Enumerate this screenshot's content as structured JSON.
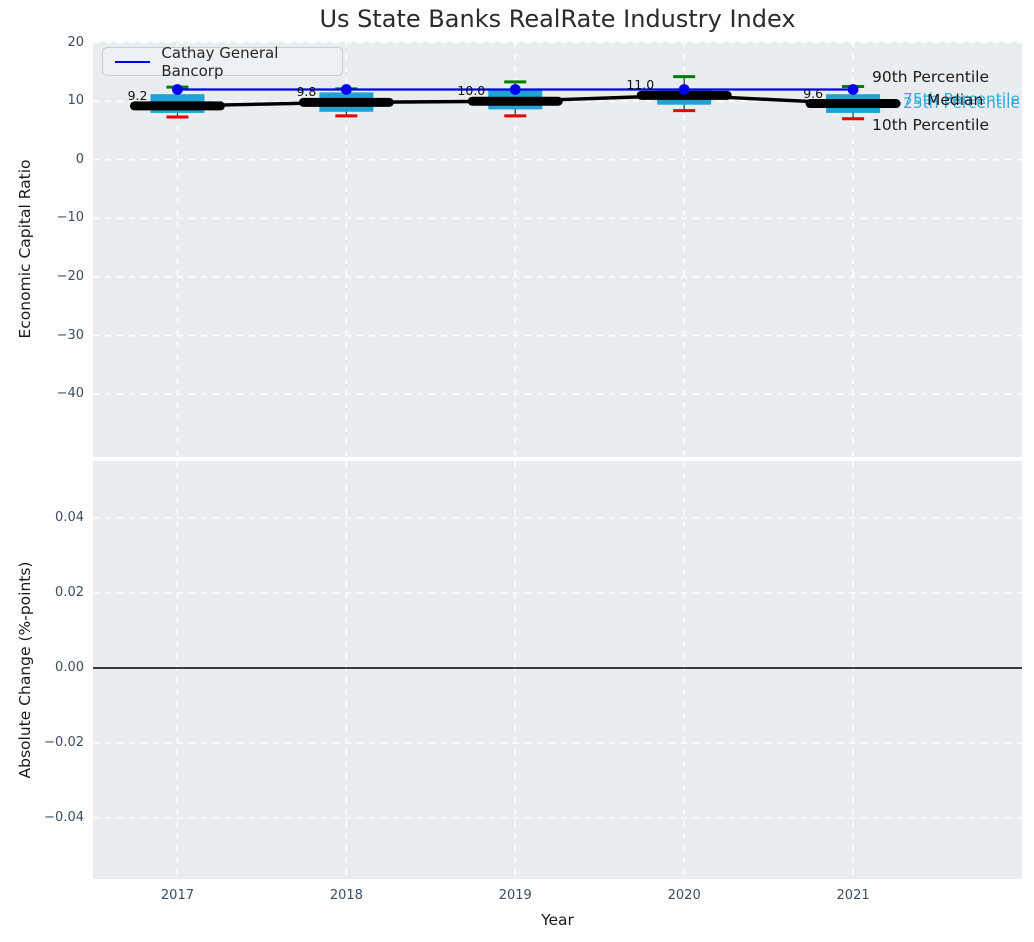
{
  "title": "Us State Banks RealRate Industry Index",
  "legend": {
    "series_label": "Cathay General Bancorp"
  },
  "axis_labels": {
    "top_y": "Economic Capital Ratio",
    "bottom_y": "Absolute Change (%-points)",
    "x": "Year"
  },
  "colors": {
    "figure_bg": "#ffffff",
    "axes_bg": "#e9edf0",
    "grid": "#ffffff",
    "box_fill": "#1fa3d7",
    "median_line": "#000000",
    "cap_90th": "#008000",
    "cap_10th": "#e60000",
    "series_line": "#0000ee",
    "tick_text": "#3e4c61",
    "label_text": "#1a1a1a",
    "annotation_cyan": "#2fadde",
    "annotation_black": "#1a1a1a",
    "zero_line": "#000000"
  },
  "chart_data": [
    {
      "type": "boxplot",
      "title": "Us State Banks RealRate Industry Index",
      "xlabel": "Year",
      "ylabel": "Economic Capital Ratio",
      "categories": [
        "2017",
        "2018",
        "2019",
        "2020",
        "2021"
      ],
      "ytick_labels": [
        "20",
        "10",
        "0",
        "−10",
        "−20",
        "−30",
        "−40"
      ],
      "ytick_values": [
        20,
        10,
        0,
        -10,
        -20,
        -30,
        -40
      ],
      "ylim": [
        -50.7,
        20.1
      ],
      "grid": "white-dashed",
      "legend_position": "upper-left",
      "boxes": [
        {
          "year": "2017",
          "p90": 12.4,
          "p75": 11.2,
          "median": 9.2,
          "p25": 8.0,
          "p10": 7.3
        },
        {
          "year": "2018",
          "p90": 12.1,
          "p75": 11.5,
          "median": 9.8,
          "p25": 8.2,
          "p10": 7.5
        },
        {
          "year": "2019",
          "p90": 13.3,
          "p75": 12.0,
          "median": 10.0,
          "p25": 8.6,
          "p10": 7.5
        },
        {
          "year": "2020",
          "p90": 14.2,
          "p75": 12.0,
          "median": 11.0,
          "p25": 9.4,
          "p10": 8.4
        },
        {
          "year": "2021",
          "p90": 12.5,
          "p75": 11.2,
          "median": 9.6,
          "p25": 8.0,
          "p10": 7.0
        }
      ],
      "median_labels": [
        "9.2",
        "9.8",
        "10.0",
        "11.0",
        "9.6"
      ],
      "series": [
        {
          "name": "Cathay General Bancorp",
          "values": [
            12.0,
            12.0,
            12.0,
            12.0,
            12.0
          ],
          "color": "#0000ee",
          "marker": "circle"
        }
      ],
      "annotations": [
        {
          "text": "90th Percentile",
          "color": "#1a1a1a"
        },
        {
          "text": "75th Percentile",
          "color": "#2fadde"
        },
        {
          "text": "Median",
          "color": "#1a1a1a"
        },
        {
          "text": "25th Percentile",
          "color": "#2fadde"
        },
        {
          "text": "10th Percentile",
          "color": "#1a1a1a"
        }
      ]
    },
    {
      "type": "line",
      "title": "",
      "xlabel": "Year",
      "ylabel": "Absolute Change (%-points)",
      "categories": [
        "2017",
        "2018",
        "2019",
        "2020",
        "2021"
      ],
      "ytick_labels": [
        "0.04",
        "0.02",
        "0.00",
        "−0.02",
        "−0.04"
      ],
      "ytick_values": [
        0.04,
        0.02,
        0.0,
        -0.02,
        -0.04
      ],
      "ylim": [
        -0.0563,
        0.0552
      ],
      "grid": "white-dashed",
      "zero_line": 0.0,
      "series": []
    }
  ]
}
